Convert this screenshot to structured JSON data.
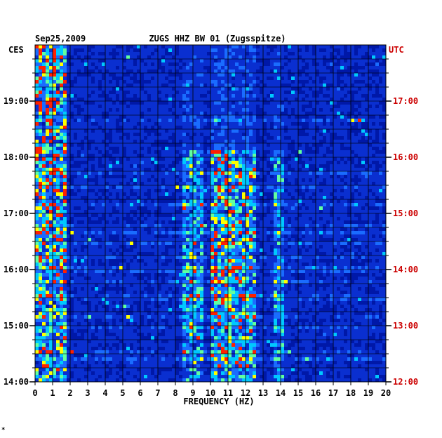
{
  "header": {
    "date": "Sep25,2009",
    "station": "ZUGS HHZ BW 01 (Zugsspitze)",
    "left_zone": "CES",
    "right_zone": "UTC"
  },
  "chart_data": {
    "type": "heatmap",
    "title": "ZUGS HHZ BW 01 (Zugsspitze)",
    "subtitle": "Sep25,2009",
    "xlabel": "FREQUENCY (HZ)",
    "xlim": [
      0,
      20
    ],
    "x_ticks": [
      "0",
      "1",
      "2",
      "3",
      "4",
      "5",
      "6",
      "7",
      "8",
      "9",
      "10",
      "11",
      "12",
      "13",
      "14",
      "15",
      "16",
      "17",
      "18",
      "19",
      "20"
    ],
    "y_range_hours": [
      14,
      20
    ],
    "y_ticks_left": [
      "14:00",
      "15:00",
      "16:00",
      "17:00",
      "18:00",
      "19:00"
    ],
    "y_ticks_right": [
      "12:00",
      "13:00",
      "14:00",
      "15:00",
      "16:00",
      "17:00"
    ],
    "left_axis_label": "CES",
    "right_axis_label": "UTC",
    "colors": {
      "background": "#0a2fd0",
      "low": "#0018a8",
      "mid": "#00c8ff",
      "high": "#ffff00",
      "peak": "#ff2000",
      "right_axis_text": "#cc0000"
    },
    "energy_bands_hz": [
      {
        "from": 0.0,
        "to": 1.8,
        "intensity": 0.85
      },
      {
        "from": 8.5,
        "to": 9.5,
        "intensity": 0.55
      },
      {
        "from": 10.0,
        "to": 11.0,
        "intensity": 0.75
      },
      {
        "from": 11.0,
        "to": 12.6,
        "intensity": 0.7
      },
      {
        "from": 13.6,
        "to": 14.2,
        "intensity": 0.5
      }
    ],
    "noisy_rows_hours": [
      14.4,
      14.55,
      14.95,
      15.15,
      15.5,
      15.8,
      16.0,
      16.2,
      16.45,
      16.65,
      16.8,
      17.15,
      17.45,
      17.7,
      18.65
    ]
  },
  "footer": {
    "mark": "*"
  }
}
